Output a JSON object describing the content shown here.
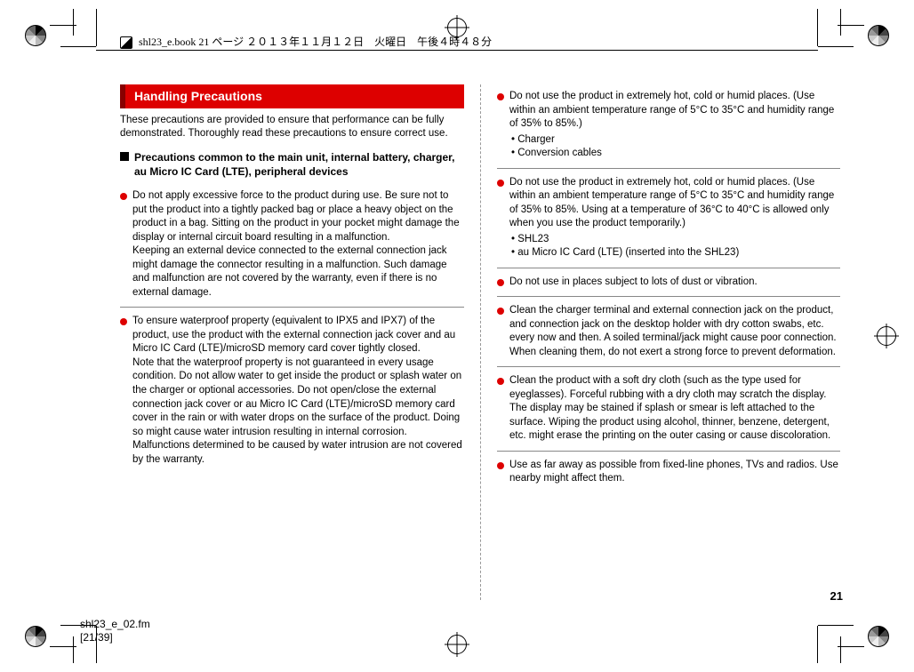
{
  "header": {
    "text": "shl23_e.book  21 ページ  ２０１３年１１月１２日　火曜日　午後４時４８分"
  },
  "footer": {
    "line1": "shl23_e_02.fm",
    "line2": "[21/39]"
  },
  "page_number": "21",
  "section_title": "Handling Precautions",
  "intro": "These precautions are provided to ensure that performance can be fully demonstrated. Thoroughly read these precautions to ensure correct use.",
  "sub_heading": "Precautions common to the main unit, internal battery, charger, au Micro IC Card (LTE), peripheral devices",
  "left_items": [
    {
      "text": "Do not apply excessive force to the product during use. Be sure not to put the product into a tightly packed bag or place a heavy object on the product in a bag. Sitting on the product in your pocket might damage the display or internal circuit board resulting in a malfunction.\nKeeping an external device connected to the external connection jack might damage the connector resulting in a malfunction. Such damage and malfunction are not covered by the warranty, even if there is no external damage."
    },
    {
      "text": "To ensure waterproof property (equivalent to IPX5 and IPX7) of the product, use the product with the external connection jack cover and au Micro IC Card (LTE)/microSD memory card cover tightly closed.\nNote that the waterproof property is not guaranteed in every usage condition. Do not allow water to get inside the product or splash water on the charger or optional accessories. Do not open/close the external connection jack cover or au Micro IC Card (LTE)/microSD memory card cover in the rain or with water drops on the surface of the product. Doing so might cause water intrusion resulting in internal corrosion. Malfunctions determined to be caused by water intrusion are not covered by the warranty."
    }
  ],
  "right_items": [
    {
      "text": "Do not use the product in extremely hot, cold or humid places. (Use within an ambient temperature range of 5°C to 35°C and humidity range of 35% to 85%.)",
      "sub": [
        "Charger",
        "Conversion cables"
      ]
    },
    {
      "text": "Do not use the product in extremely hot, cold or humid places. (Use within an ambient temperature range of 5°C to 35°C and humidity range of 35% to 85%. Using at a temperature of 36°C to 40°C is allowed only when you use the product temporarily.)",
      "sub": [
        "SHL23",
        "au Micro IC Card (LTE) (inserted into the SHL23)"
      ]
    },
    {
      "text": "Do not use in places subject to lots of dust or vibration."
    },
    {
      "text": "Clean the charger terminal and external connection jack on the product, and connection jack on the desktop holder with dry cotton swabs, etc. every now and then. A soiled terminal/jack might cause poor connection. When cleaning them, do not exert a strong force to prevent deformation."
    },
    {
      "text": "Clean the product with a soft dry cloth (such as the type used for eyeglasses). Forceful rubbing with a dry cloth may scratch the display. The display may be stained if splash or smear is left attached to the surface. Wiping the product using alcohol, thinner, benzene, detergent, etc. might erase the printing on the outer casing or cause discoloration."
    },
    {
      "text": "Use as far away as possible from fixed-line phones, TVs and radios. Use nearby might affect them."
    }
  ],
  "colors": {
    "accent": "#d00000",
    "accent_dark": "#880000",
    "text": "#000000",
    "divider": "#888888"
  }
}
